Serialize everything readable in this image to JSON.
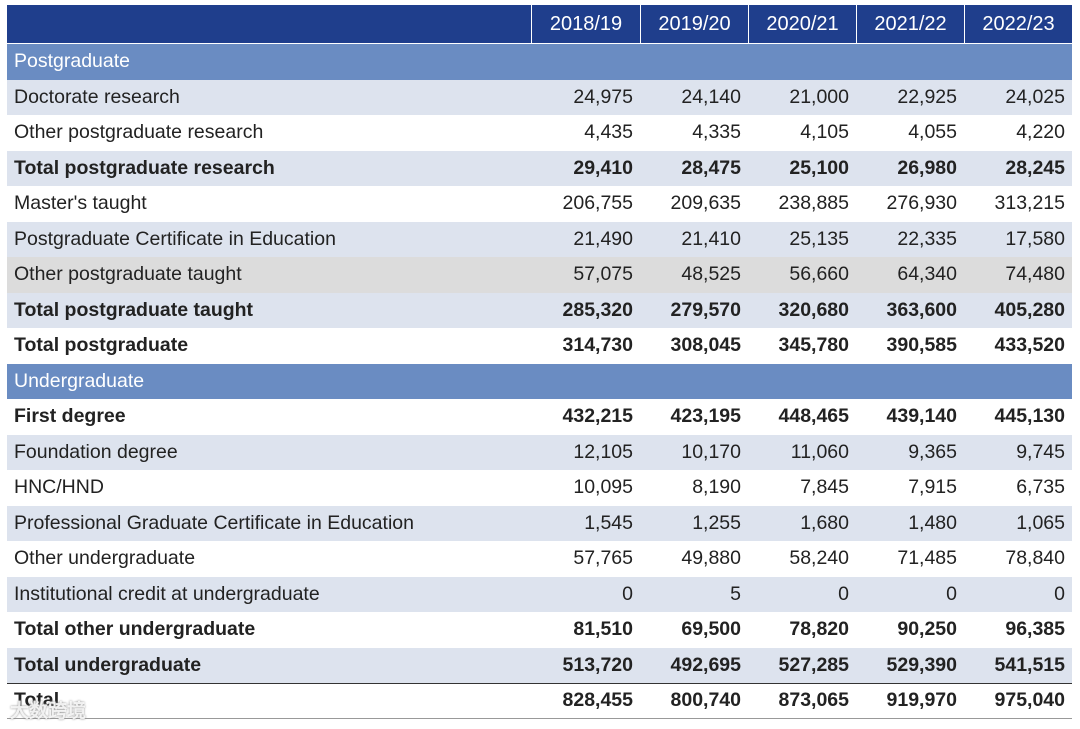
{
  "table": {
    "header": [
      "2018/19",
      "2019/20",
      "2020/21",
      "2021/22",
      "2022/23"
    ],
    "rows": [
      {
        "section": "Postgraduate"
      },
      {
        "label": "Doctorate research",
        "values": [
          "24,975",
          "24,140",
          "21,000",
          "22,925",
          "24,025"
        ]
      },
      {
        "label": "Other postgraduate research",
        "values": [
          "4,435",
          "4,335",
          "4,105",
          "4,055",
          "4,220"
        ]
      },
      {
        "label": "Total postgraduate research",
        "values": [
          "29,410",
          "28,475",
          "25,100",
          "26,980",
          "28,245"
        ],
        "bold": true
      },
      {
        "label": "Master's taught",
        "values": [
          "206,755",
          "209,635",
          "238,885",
          "276,930",
          "313,215"
        ]
      },
      {
        "label": "Postgraduate Certificate in Education",
        "values": [
          "21,490",
          "21,410",
          "25,135",
          "22,335",
          "17,580"
        ]
      },
      {
        "label": "Other postgraduate taught",
        "values": [
          "57,075",
          "48,525",
          "56,660",
          "64,340",
          "74,480"
        ]
      },
      {
        "label": "Total postgraduate taught",
        "values": [
          "285,320",
          "279,570",
          "320,680",
          "363,600",
          "405,280"
        ],
        "bold": true
      },
      {
        "label": "Total postgraduate",
        "values": [
          "314,730",
          "308,045",
          "345,780",
          "390,585",
          "433,520"
        ],
        "bold": true
      },
      {
        "section": "Undergraduate"
      },
      {
        "label": "First degree",
        "values": [
          "432,215",
          "423,195",
          "448,465",
          "439,140",
          "445,130"
        ],
        "bold": true
      },
      {
        "label": "Foundation degree",
        "values": [
          "12,105",
          "10,170",
          "11,060",
          "9,365",
          "9,745"
        ]
      },
      {
        "label": "HNC/HND",
        "values": [
          "10,095",
          "8,190",
          "7,845",
          "7,915",
          "6,735"
        ]
      },
      {
        "label": "Professional Graduate Certificate in Education",
        "values": [
          "1,545",
          "1,255",
          "1,680",
          "1,480",
          "1,065"
        ]
      },
      {
        "label": "Other undergraduate",
        "values": [
          "57,765",
          "49,880",
          "58,240",
          "71,485",
          "78,840"
        ]
      },
      {
        "label": "Institutional credit at undergraduate",
        "values": [
          "0",
          "5",
          "0",
          "0",
          "0"
        ]
      },
      {
        "label": "Total other undergraduate",
        "values": [
          "81,510",
          "69,500",
          "78,820",
          "90,250",
          "96,385"
        ],
        "bold": true
      },
      {
        "label": "Total undergraduate",
        "values": [
          "513,720",
          "492,695",
          "527,285",
          "529,390",
          "541,515"
        ],
        "bold": true
      },
      {
        "label": "Total",
        "values": [
          "828,455",
          "800,740",
          "873,065",
          "919,970",
          "975,040"
        ],
        "bold": true
      }
    ]
  },
  "watermark": "大数跨境"
}
